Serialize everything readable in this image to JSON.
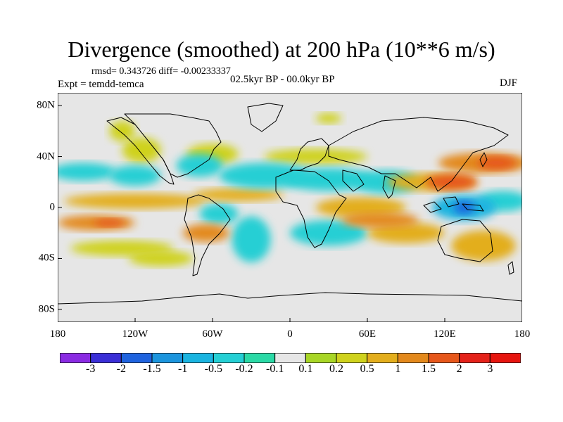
{
  "title": "Divergence (smoothed) at 200 hPa (10**6 m/s)",
  "stats": "rmsd= 0.343726 diff= -0.00233337",
  "period": "02.5kyr BP - 00.0kyr BP",
  "experiment": "Expt = temdd-temca",
  "season": "DJF",
  "map": {
    "projection": "cylindrical-equidistant",
    "lon_range": [
      -180,
      180
    ],
    "lat_range": [
      -90,
      90
    ],
    "x_ticks": [
      "180",
      "120W",
      "60W",
      "0",
      "60E",
      "120E",
      "180"
    ],
    "y_ticks": [
      "80N",
      "40N",
      "0",
      "40S",
      "80S"
    ]
  },
  "colorbar": {
    "labels": [
      "-3",
      "-2",
      "-1.5",
      "-1",
      "-0.5",
      "-0.2",
      "-0.1",
      "0.1",
      "0.2",
      "0.5",
      "1",
      "1.5",
      "2",
      "3"
    ],
    "colors": [
      "#8a2be2",
      "#3a2fd6",
      "#1f63de",
      "#1c95dd",
      "#1ab4e0",
      "#25cfd4",
      "#2bd9a6",
      "#e6e6e6",
      "#a8d626",
      "#cfd21d",
      "#e3ae1d",
      "#e3891c",
      "#e6571b",
      "#e4221a",
      "#e6150f"
    ]
  },
  "fields": [
    {
      "v": 1.0,
      "lon": -150,
      "lat": -12,
      "w": 30,
      "h": 6
    },
    {
      "v": 1.5,
      "lon": -140,
      "lat": -12,
      "w": 12,
      "h": 3
    },
    {
      "v": 0.2,
      "lon": -130,
      "lat": -32,
      "w": 40,
      "h": 6
    },
    {
      "v": 0.2,
      "lon": -100,
      "lat": -40,
      "w": 25,
      "h": 6
    },
    {
      "v": -0.5,
      "lon": -160,
      "lat": 28,
      "w": 25,
      "h": 7
    },
    {
      "v": -0.5,
      "lon": -120,
      "lat": 25,
      "w": 20,
      "h": 8
    },
    {
      "v": 0.5,
      "lon": -120,
      "lat": 5,
      "w": 55,
      "h": 6
    },
    {
      "v": 0.2,
      "lon": -115,
      "lat": 45,
      "w": 15,
      "h": 10
    },
    {
      "v": -0.5,
      "lon": -70,
      "lat": 33,
      "w": 18,
      "h": 9
    },
    {
      "v": 0.2,
      "lon": -60,
      "lat": 42,
      "w": 20,
      "h": 8
    },
    {
      "v": 1.0,
      "lon": -65,
      "lat": -20,
      "w": 18,
      "h": 7
    },
    {
      "v": -0.5,
      "lon": -55,
      "lat": -5,
      "w": 15,
      "h": 8
    },
    {
      "v": -0.5,
      "lon": -30,
      "lat": -25,
      "w": 15,
      "h": 18
    },
    {
      "v": 0.5,
      "lon": -40,
      "lat": 10,
      "w": 35,
      "h": 5
    },
    {
      "v": -0.5,
      "lon": -20,
      "lat": 25,
      "w": 35,
      "h": 10
    },
    {
      "v": -0.5,
      "lon": 30,
      "lat": 22,
      "w": 35,
      "h": 9
    },
    {
      "v": -0.5,
      "lon": 30,
      "lat": -20,
      "w": 30,
      "h": 10
    },
    {
      "v": 0.2,
      "lon": 20,
      "lat": 40,
      "w": 40,
      "h": 6
    },
    {
      "v": 0.5,
      "lon": 55,
      "lat": 0,
      "w": 35,
      "h": 8
    },
    {
      "v": 1.0,
      "lon": 70,
      "lat": -10,
      "w": 30,
      "h": 6
    },
    {
      "v": 0.5,
      "lon": 90,
      "lat": -20,
      "w": 30,
      "h": 8
    },
    {
      "v": -0.5,
      "lon": 75,
      "lat": 20,
      "w": 25,
      "h": 9
    },
    {
      "v": 0.5,
      "lon": 110,
      "lat": 20,
      "w": 35,
      "h": 7
    },
    {
      "v": 1.5,
      "lon": 125,
      "lat": 20,
      "w": 20,
      "h": 6
    },
    {
      "v": 1.0,
      "lon": 150,
      "lat": 35,
      "w": 35,
      "h": 8
    },
    {
      "v": 1.5,
      "lon": 160,
      "lat": 35,
      "w": 15,
      "h": 5
    },
    {
      "v": -1.0,
      "lon": 135,
      "lat": 0,
      "w": 25,
      "h": 10
    },
    {
      "v": -2.0,
      "lon": 135,
      "lat": 0,
      "w": 8,
      "h": 5
    },
    {
      "v": -0.5,
      "lon": 165,
      "lat": 5,
      "w": 20,
      "h": 8
    },
    {
      "v": 0.5,
      "lon": 150,
      "lat": -30,
      "w": 25,
      "h": 12
    },
    {
      "v": 0.2,
      "lon": -130,
      "lat": 60,
      "w": 10,
      "h": 8
    },
    {
      "v": 0.2,
      "lon": 30,
      "lat": 70,
      "w": 10,
      "h": 4
    }
  ]
}
